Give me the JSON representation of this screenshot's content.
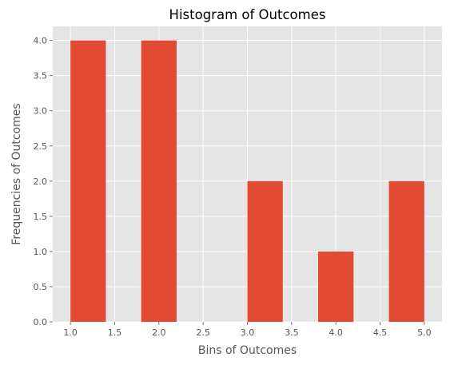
{
  "chart_data": {
    "type": "bar",
    "title": "Histogram of Outcomes",
    "xlabel": "Bins of Outcomes",
    "ylabel": "Frequencies of Outcomes",
    "xlim": [
      0.8,
      5.2
    ],
    "ylim": [
      0,
      4.2
    ],
    "xticks": [
      "1.0",
      "1.5",
      "2.0",
      "2.5",
      "3.0",
      "3.5",
      "4.0",
      "4.5",
      "5.0"
    ],
    "yticks": [
      "0.0",
      "0.5",
      "1.0",
      "1.5",
      "2.0",
      "2.5",
      "3.0",
      "3.5",
      "4.0"
    ],
    "bins": [
      {
        "start": 1.0,
        "end": 1.4,
        "count": 4
      },
      {
        "start": 1.4,
        "end": 1.8,
        "count": 0
      },
      {
        "start": 1.8,
        "end": 2.2,
        "count": 4
      },
      {
        "start": 2.2,
        "end": 2.6,
        "count": 0
      },
      {
        "start": 2.6,
        "end": 3.0,
        "count": 0
      },
      {
        "start": 3.0,
        "end": 3.4,
        "count": 2
      },
      {
        "start": 3.4,
        "end": 3.8,
        "count": 0
      },
      {
        "start": 3.8,
        "end": 4.2,
        "count": 1
      },
      {
        "start": 4.2,
        "end": 4.6,
        "count": 0
      },
      {
        "start": 4.6,
        "end": 5.0,
        "count": 2
      }
    ],
    "grid": true,
    "colors": {
      "bar": "#E24A33",
      "plot_background": "#E5E5E5",
      "grid": "#FFFFFF"
    }
  }
}
